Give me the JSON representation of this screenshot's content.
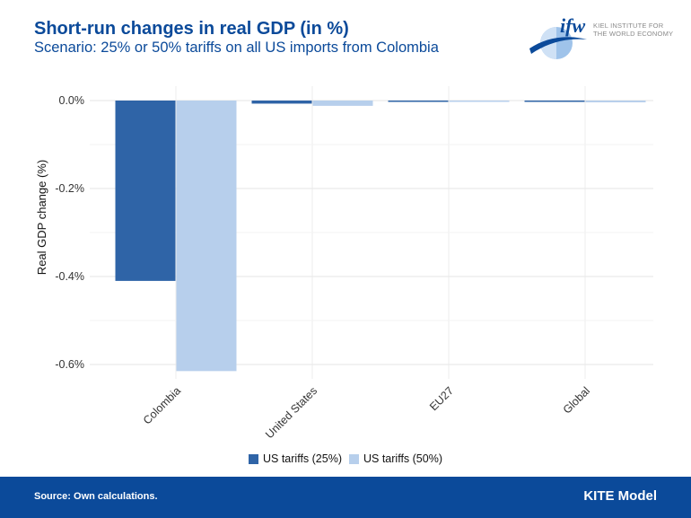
{
  "header": {
    "title": "Short-run changes in real GDP (in %)",
    "subtitle": "Scenario: 25% or 50% tariffs on all US imports from Colombia"
  },
  "logo": {
    "mark": "ifw",
    "line1": "KIEL INSTITUTE FOR",
    "line2": "THE WORLD ECONOMY",
    "icon": "globe-swoosh-icon"
  },
  "chart_data": {
    "type": "bar",
    "categories": [
      "Colombia",
      "United States",
      "EU27",
      "Global"
    ],
    "series": [
      {
        "name": "US tariffs (25%)",
        "color": "#2f64a7",
        "values": [
          -0.41,
          -0.007,
          -0.001,
          -0.002
        ]
      },
      {
        "name": "US tariffs (50%)",
        "color": "#b7cfec",
        "values": [
          -0.615,
          -0.012,
          -0.002,
          -0.004
        ]
      }
    ],
    "ylabel": "Real GDP change (%)",
    "xlabel": "",
    "ylim": [
      -0.62,
      0.0
    ],
    "yticks": [
      0.0,
      -0.2,
      -0.4,
      -0.6
    ],
    "ytick_labels": [
      "0.0%",
      "-0.2%",
      "-0.4%",
      "-0.6%"
    ],
    "grid": true,
    "legend_position": "bottom"
  },
  "footer": {
    "source": "Source: Own calculations.",
    "model": "KITE Model"
  }
}
